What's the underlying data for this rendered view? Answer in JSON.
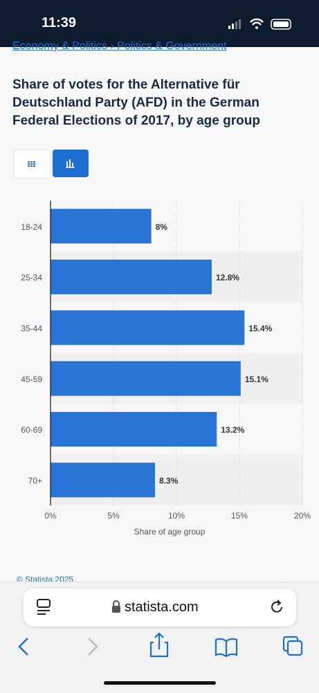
{
  "status_bar": {
    "time": "11:39"
  },
  "breadcrumb": "Economy & Politics › Politics & Government",
  "chart_data": {
    "type": "bar",
    "orientation": "horizontal",
    "title": "Share of votes for the Alternative für Deutschland Party (AFD) in the German Federal Elections of 2017, by age group",
    "categories": [
      "18-24",
      "25-34",
      "35-44",
      "45-59",
      "60-69",
      "70+"
    ],
    "values": [
      8,
      12.8,
      15.4,
      15.1,
      13.2,
      8.3
    ],
    "value_labels": [
      "8%",
      "12.8%",
      "15.4%",
      "15.1%",
      "13.2%",
      "8.3%"
    ],
    "color": "#2a74d6",
    "xlabel": "Share of age group",
    "xlim": [
      0,
      20
    ],
    "xticks": [
      {
        "value": 0,
        "label": "0%"
      },
      {
        "value": 5,
        "label": "5%"
      },
      {
        "value": 10,
        "label": "10%"
      },
      {
        "value": 15,
        "label": "15%"
      },
      {
        "value": 20,
        "label": "20%"
      }
    ],
    "grid": true
  },
  "footer": "© Statista 2025",
  "browser": {
    "url": "statista.com"
  }
}
